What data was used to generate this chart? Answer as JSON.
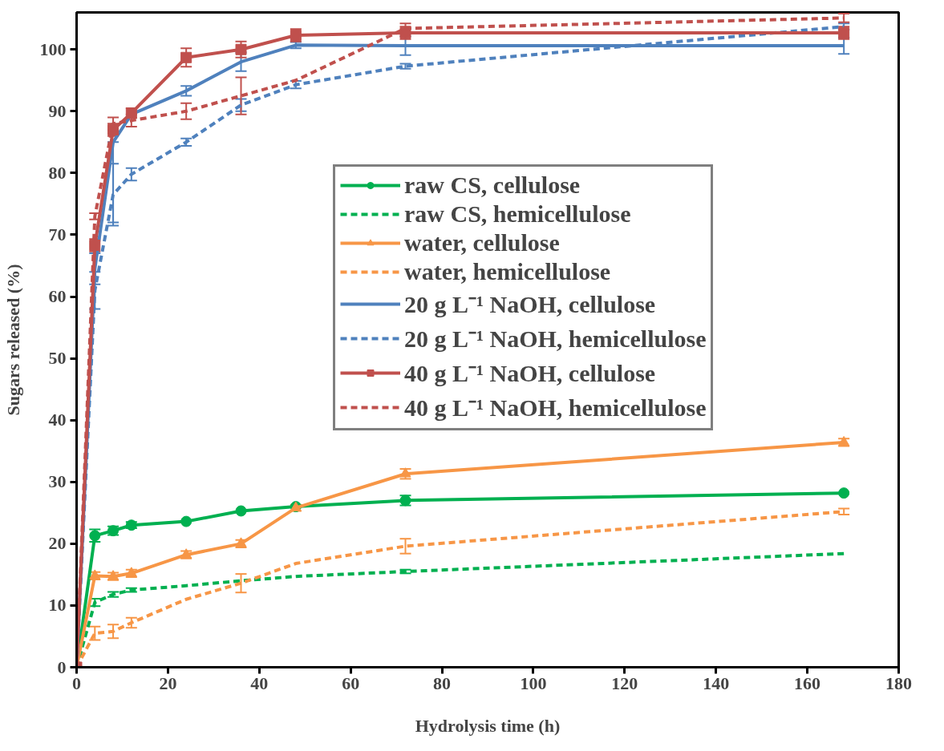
{
  "chart_data": {
    "type": "line",
    "xlabel": "Hydrolysis time (h)",
    "ylabel": "Sugars released (%)",
    "x": [
      0,
      4,
      8,
      12,
      24,
      36,
      48,
      72,
      168
    ],
    "xlim": [
      0,
      180
    ],
    "xticks": [
      0,
      20,
      40,
      60,
      80,
      100,
      120,
      140,
      160,
      180
    ],
    "ylim": [
      0,
      106
    ],
    "yticks": [
      0,
      10,
      20,
      30,
      40,
      50,
      60,
      70,
      80,
      90,
      100
    ],
    "grid": false,
    "legend": "top right",
    "series": [
      {
        "name": "raw CS, cellulose",
        "color": "#00b050",
        "marker": "circle",
        "line_style": "solid",
        "values": [
          0,
          21.3,
          22.1,
          23,
          23.6,
          25.3,
          26,
          27,
          28.2
        ],
        "errors": [
          null,
          1,
          0.7,
          0.5,
          null,
          null,
          null,
          0.8,
          null
        ]
      },
      {
        "name": "raw CS, hemicellulose",
        "color": "#00b050",
        "marker": "none",
        "line_style": "dashed",
        "values": [
          0,
          10.5,
          11.8,
          12.5,
          13.2,
          14,
          14.7,
          15.5,
          18.4
        ],
        "errors": [
          null,
          0.6,
          0.4,
          0.3,
          null,
          null,
          null,
          0.3,
          null
        ]
      },
      {
        "name": "water, cellulose",
        "color": "#f79646",
        "marker": "triangle",
        "line_style": "solid",
        "values": [
          0,
          14.8,
          14.7,
          15.2,
          18.2,
          20,
          25.8,
          31.3,
          36.4
        ],
        "errors": [
          null,
          0.6,
          0.6,
          0.6,
          0.6,
          0.6,
          0.5,
          0.8,
          0.6
        ]
      },
      {
        "name": "water, hemicellulose",
        "color": "#f79646",
        "marker": "none",
        "line_style": "dashed",
        "values": [
          0,
          5.5,
          5.8,
          7.2,
          11,
          13.6,
          16.8,
          19.6,
          25.2
        ],
        "errors": [
          null,
          1.1,
          1.1,
          0.8,
          null,
          1.5,
          null,
          1.2,
          0.5
        ]
      },
      {
        "name": "20 g L⁻¹ NaOH, cellulose",
        "color": "#4f81bd",
        "marker": "none",
        "line_style": "solid",
        "values": [
          0,
          64.5,
          85,
          89.5,
          93.3,
          98,
          100.7,
          100.6,
          100.6
        ],
        "errors": [
          null,
          2.5,
          [
            72,
            85
          ],
          null,
          0.8,
          1.5,
          0.5,
          1.5,
          1.3
        ]
      },
      {
        "name": "20 g L⁻¹ NaOH, hemicellulose",
        "color": "#4f81bd",
        "marker": "none",
        "line_style": "dashed",
        "values": [
          0,
          61,
          76.5,
          79.8,
          85,
          91,
          94.3,
          97.3,
          103.7
        ],
        "errors": [
          null,
          3,
          5,
          1,
          0.6,
          1,
          0.6,
          0.4,
          0.5
        ]
      },
      {
        "name": "40 g L⁻¹ NaOH, cellulose",
        "color": "#c0504d",
        "marker": "square",
        "line_style": "solid",
        "values": [
          0,
          68.3,
          87,
          89.7,
          98.7,
          100,
          102.3,
          102.7,
          102.7
        ],
        "errors": [
          null,
          1,
          1,
          0.8,
          1.5,
          1.3,
          1,
          1,
          1
        ]
      },
      {
        "name": "40 g L⁻¹ NaOH, hemicellulose",
        "color": "#c0504d",
        "marker": "none",
        "line_style": "dashed",
        "values": [
          0,
          73,
          88,
          88.5,
          90,
          92.5,
          95,
          103.4,
          105.1
        ],
        "errors": [
          null,
          0.5,
          1,
          1,
          1.3,
          3,
          null,
          0.8,
          0.7
        ]
      }
    ]
  }
}
